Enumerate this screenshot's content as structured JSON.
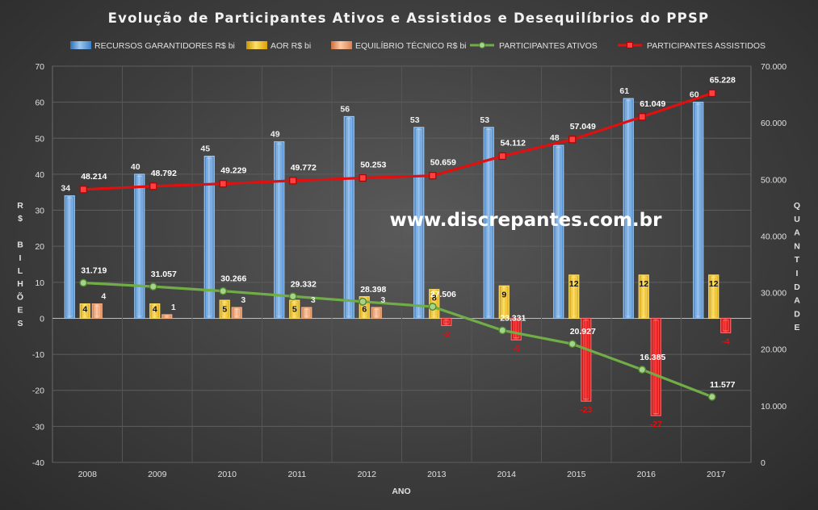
{
  "chart_data": {
    "type": "bar",
    "title": "Evolução de Participantes Ativos e Assistidos e Desequilíbrios do PPSP",
    "watermark": "www.discrepantes.com.br",
    "xlabel": "ANO",
    "ylabel_left": "R$ BILHÕES",
    "ylabel_right": "QUANTIDADE",
    "categories": [
      "2008",
      "2009",
      "2010",
      "2011",
      "2012",
      "2013",
      "2014",
      "2015",
      "2016",
      "2017"
    ],
    "ylim_left": [
      -40,
      70
    ],
    "yticks_left": [
      "-40",
      "-30",
      "-20",
      "-10",
      "0",
      "10",
      "20",
      "30",
      "40",
      "50",
      "60",
      "70"
    ],
    "ylim_right": [
      0,
      70000
    ],
    "yticks_right": [
      "0",
      "10.000",
      "20.000",
      "30.000",
      "40.000",
      "50.000",
      "60.000",
      "70.000"
    ],
    "legend_position": "top",
    "bar_series": [
      {
        "name": "RECURSOS GARANTIDORES R$ bi",
        "color": "#5b9bd5",
        "values": [
          34,
          40,
          45,
          49,
          56,
          53,
          53,
          48,
          61,
          60
        ]
      },
      {
        "name": "AOR R$ bi",
        "color": "#ffc000",
        "values": [
          4,
          4,
          5,
          5,
          6,
          8,
          9,
          12,
          12,
          12
        ]
      },
      {
        "name": "EQUILÍBRIO TÉCNICO R$ bi",
        "color": "#f4b183",
        "negative_color": "#e01010",
        "values": [
          4,
          1,
          3,
          3,
          3,
          -2,
          -6,
          -23,
          -27,
          -4
        ]
      }
    ],
    "line_series": [
      {
        "name": "PARTICIPANTES ATIVOS",
        "color": "#70ad47",
        "axis": "right",
        "values": [
          31719,
          31057,
          30266,
          29332,
          28398,
          27506,
          23331,
          20927,
          16385,
          11577
        ],
        "labels": [
          "31.719",
          "31.057",
          "30.266",
          "29.332",
          "28.398",
          "27.506",
          "23.331",
          "20.927",
          "16.385",
          "11.577"
        ]
      },
      {
        "name": "PARTICIPANTES ASSISTIDOS",
        "color": "#e01010",
        "axis": "right",
        "values": [
          48214,
          48792,
          49229,
          49772,
          50253,
          50659,
          54112,
          57049,
          61049,
          65228
        ],
        "labels": [
          "48.214",
          "48.792",
          "49.229",
          "49.772",
          "50.253",
          "50.659",
          "54.112",
          "57.049",
          "61.049",
          "65.228"
        ]
      }
    ]
  }
}
